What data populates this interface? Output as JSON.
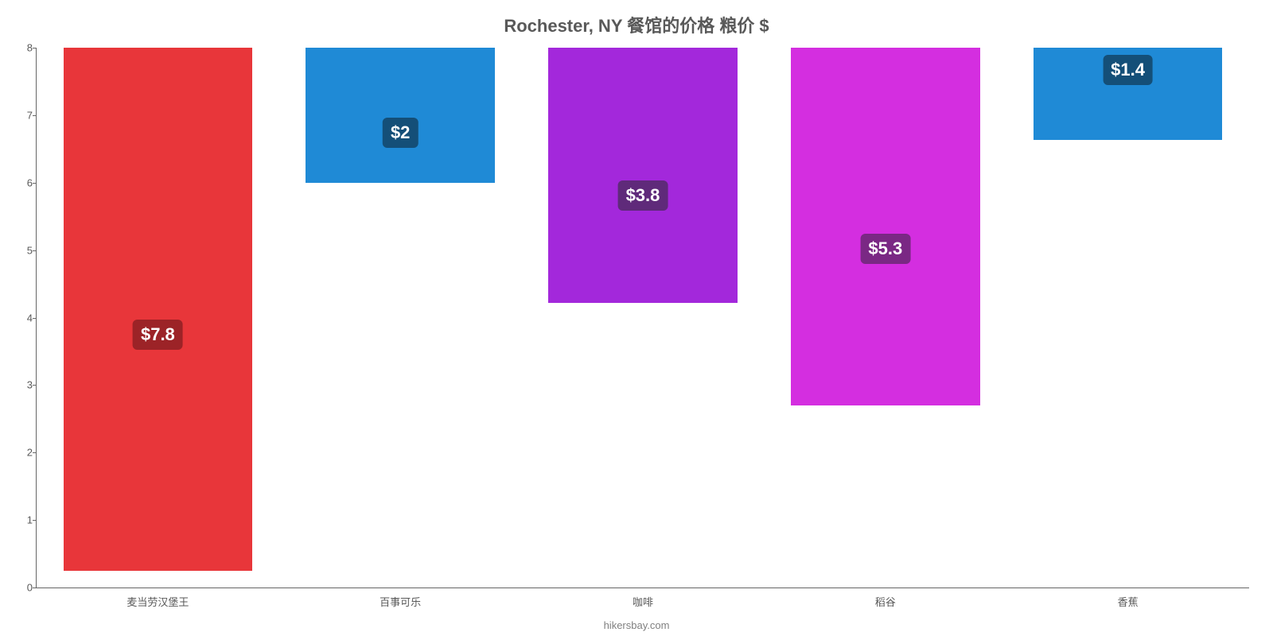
{
  "chart": {
    "type": "bar",
    "title": "Rochester, NY 餐馆的价格 粮价 $",
    "title_color": "#595959",
    "title_fontsize": 22,
    "attribution": "hikersbay.com",
    "background_color": "#ffffff",
    "axis_line_color": "#666666",
    "tick_label_color": "#595959",
    "tick_label_fontsize": 13,
    "ylim": [
      0,
      8
    ],
    "ytick_step": 1,
    "yticks": [
      "0",
      "1",
      "2",
      "3",
      "4",
      "5",
      "6",
      "7",
      "8"
    ],
    "categories": [
      "麦当劳汉堡王",
      "百事可乐",
      "咖啡",
      "稻谷",
      "香蕉"
    ],
    "values": [
      7.75,
      2.0,
      3.78,
      5.3,
      1.37
    ],
    "value_labels": [
      "$7.8",
      "$2",
      "$3.8",
      "$5.3",
      "$1.4"
    ],
    "bar_colors": [
      "#e8363a",
      "#1f8ad6",
      "#a328db",
      "#d42ee0",
      "#1f8ad6"
    ],
    "badge_colors": [
      "#9c2327",
      "#144f78",
      "#5f2a7a",
      "#7a2884",
      "#144f78"
    ],
    "value_label_fontsize": 22,
    "value_label_color": "#ffffff",
    "bar_width": 0.78,
    "badge_offset_from_top": 0.52
  }
}
